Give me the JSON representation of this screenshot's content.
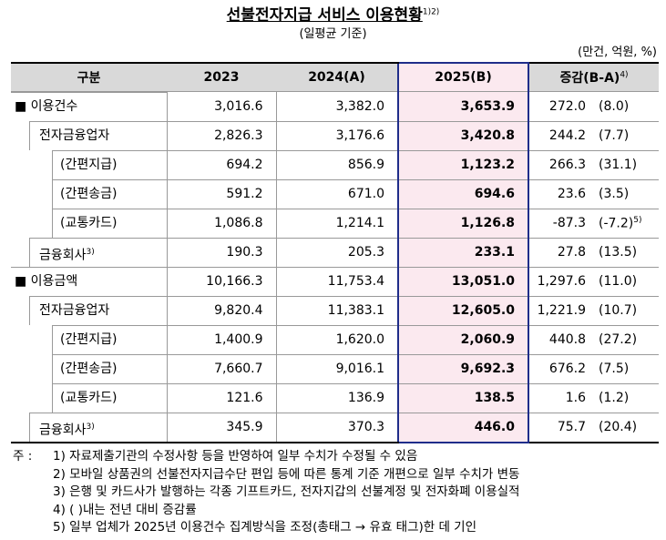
{
  "title": "선불전자지급 서비스 이용현황",
  "title_note": "1)2)",
  "subtitle": "(일평균 기준)",
  "unit": "(만건, 억원, %)",
  "table": {
    "header": [
      "구분",
      "2023",
      "2024(A)",
      "2025(B)",
      "증감(B-A)"
    ],
    "header_note": "4)",
    "rows": [
      {
        "label": "■ 이용건수",
        "level": 0,
        "values": [
          "3,016.6",
          "3,382.0",
          "3,653.9"
        ],
        "change": "272.0",
        "rate": "(8.0)"
      },
      {
        "label": "전자금융업자",
        "level": 1,
        "values": [
          "2,826.3",
          "3,176.6",
          "3,420.8"
        ],
        "change": "244.2",
        "rate": "(7.7)"
      },
      {
        "label": "(간편지급)",
        "level": 2,
        "values": [
          "694.2",
          "856.9",
          "1,123.2"
        ],
        "change": "266.3",
        "rate": "(31.1)"
      },
      {
        "label": "(간편송금)",
        "level": 2,
        "values": [
          "591.2",
          "671.0",
          "694.6"
        ],
        "change": "23.6",
        "rate": "(3.5)"
      },
      {
        "label": "(교통카드)",
        "level": 2,
        "values": [
          "1,086.8",
          "1,214.1",
          "1,126.8"
        ],
        "change": "-87.3",
        "rate": "(-7.2)",
        "rate_note": "5)"
      },
      {
        "label": "금융회사",
        "note": "3)",
        "level": 1,
        "values": [
          "190.3",
          "205.3",
          "233.1"
        ],
        "change": "27.8",
        "rate": "(13.5)"
      },
      {
        "label": "■ 이용금액",
        "level": 0,
        "values": [
          "10,166.3",
          "11,753.4",
          "13,051.0"
        ],
        "change": "1,297.6",
        "rate": "(11.0)"
      },
      {
        "label": "전자금융업자",
        "level": 1,
        "values": [
          "9,820.4",
          "11,383.1",
          "12,605.0"
        ],
        "change": "1,221.9",
        "rate": "(10.7)"
      },
      {
        "label": "(간편지급)",
        "level": 2,
        "values": [
          "1,400.9",
          "1,620.0",
          "2,060.9"
        ],
        "change": "440.8",
        "rate": "(27.2)"
      },
      {
        "label": "(간편송금)",
        "level": 2,
        "values": [
          "7,660.7",
          "9,016.1",
          "9,692.3"
        ],
        "change": "676.2",
        "rate": "(7.5)"
      },
      {
        "label": "(교통카드)",
        "level": 2,
        "values": [
          "121.6",
          "136.9",
          "138.5"
        ],
        "change": "1.6",
        "rate": "(1.2)"
      },
      {
        "label": "금융회사",
        "note": "3)",
        "level": 1,
        "values": [
          "345.9",
          "370.3",
          "446.0"
        ],
        "change": "75.7",
        "rate": "(20.4)"
      }
    ]
  },
  "notes": {
    "prefix": "주 :",
    "items": [
      "1) 자료제출기관의 수정사항 등을 반영하여 일부 수치가 수정될 수 있음",
      "2) 모바일 상품권의 선불전자지급수단 편입 등에 따른 통계 기준 개편으로 일부 수치가 변동",
      "3) 은행 및 카드사가 발행하는 각종 기프트카드, 전자지갑의 선불계정 및 전자화폐 이용실적",
      "4) (   )내는 전년 대비 증감률",
      "5) 일부 업체가 2025년 이용건수 집계방식을 조정(총태그 → 유효 태그)한 데 기인"
    ]
  }
}
